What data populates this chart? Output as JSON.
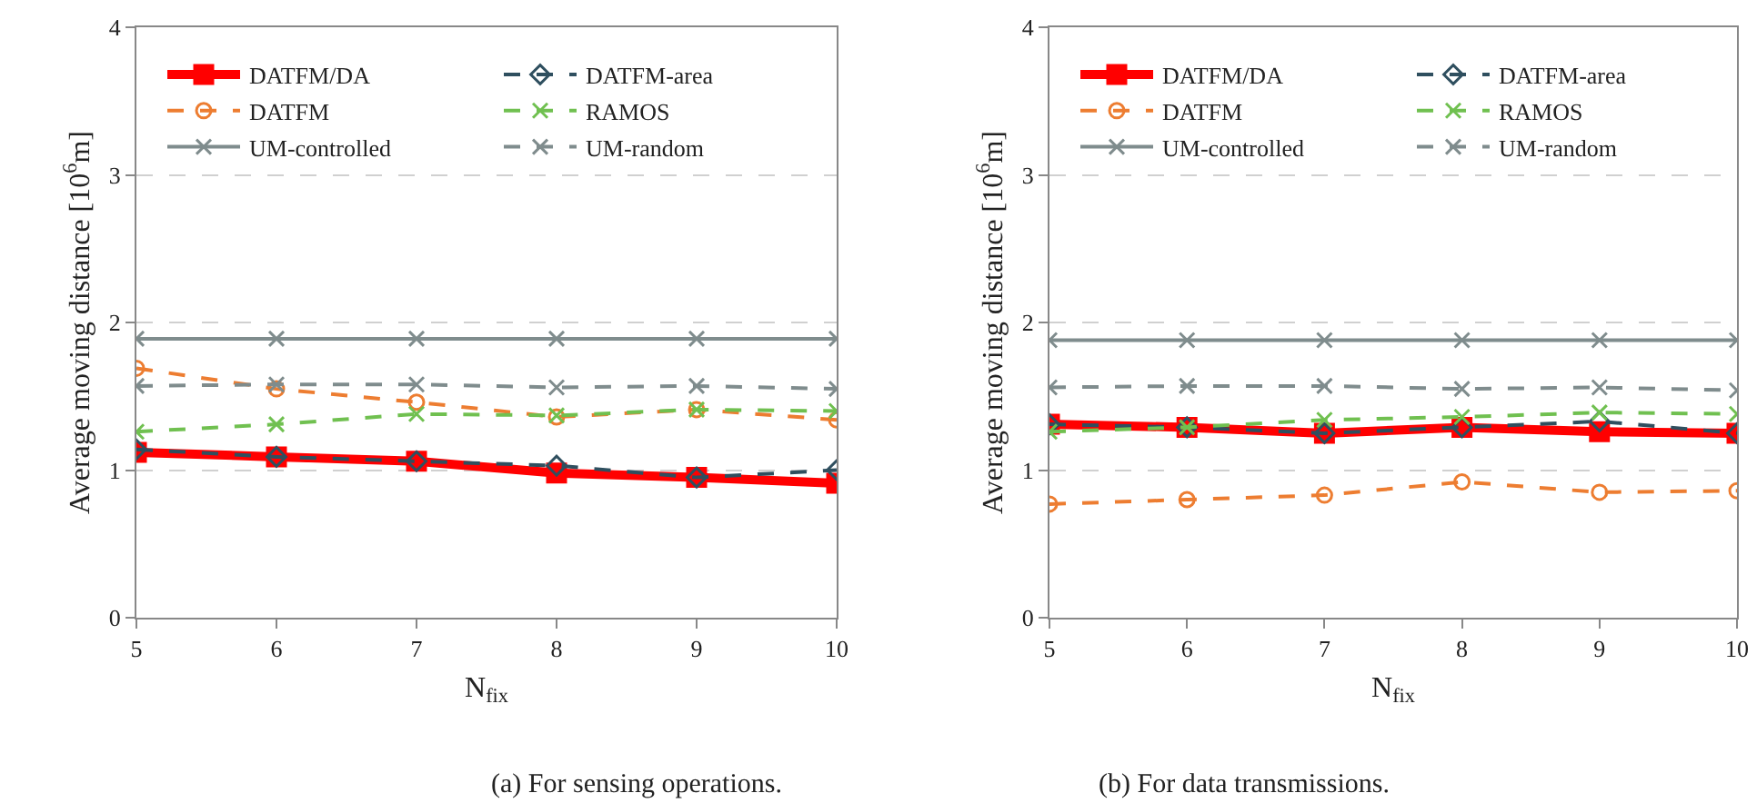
{
  "chart_data": [
    {
      "type": "line",
      "title": "(a) For sensing operations.",
      "xlabel": "N$_{fix}$",
      "ylabel": "Average moving distance [10$^{6}$m]",
      "x": [
        5,
        6,
        7,
        8,
        9,
        10
      ],
      "xlim": [
        5,
        10
      ],
      "xticks": [
        5,
        6,
        7,
        8,
        9,
        10
      ],
      "ylim": [
        0,
        4
      ],
      "yticks": [
        0,
        1,
        2,
        3,
        4
      ],
      "grid": "y",
      "legend": "top",
      "series": [
        {
          "name": "DATFM/DA",
          "color": "#ff0000",
          "marker": "square",
          "line_style": "solid",
          "values": [
            1.12,
            1.09,
            1.06,
            0.98,
            0.95,
            0.91
          ]
        },
        {
          "name": "DATFM-area",
          "color": "#2f4f5f",
          "marker": "diamond",
          "line_style": "dashed",
          "values": [
            1.14,
            1.09,
            1.06,
            1.03,
            0.95,
            1.0
          ]
        },
        {
          "name": "DATFM",
          "color": "#ed7d31",
          "marker": "circle",
          "line_style": "dashed",
          "values": [
            1.69,
            1.55,
            1.46,
            1.36,
            1.41,
            1.34
          ]
        },
        {
          "name": "RAMOS",
          "color": "#70c050",
          "marker": "cross",
          "line_style": "dashed",
          "values": [
            1.26,
            1.31,
            1.38,
            1.37,
            1.41,
            1.4
          ]
        },
        {
          "name": "UM-controlled",
          "color": "#7f8c8d",
          "marker": "cross",
          "line_style": "solid",
          "values": [
            1.89,
            1.89,
            1.89,
            1.89,
            1.89,
            1.89
          ]
        },
        {
          "name": "UM-random",
          "color": "#7f8c8d",
          "marker": "cross",
          "line_style": "dashed",
          "values": [
            1.57,
            1.58,
            1.58,
            1.56,
            1.57,
            1.55
          ]
        }
      ]
    },
    {
      "type": "line",
      "title": "(b) For data transmissions.",
      "xlabel": "N$_{fix}$",
      "ylabel": "Average moving distance [10$^{6}$m]",
      "x": [
        5,
        6,
        7,
        8,
        9,
        10
      ],
      "xlim": [
        5,
        10
      ],
      "xticks": [
        5,
        6,
        7,
        8,
        9,
        10
      ],
      "ylim": [
        0,
        4
      ],
      "yticks": [
        0,
        1,
        2,
        3,
        4
      ],
      "grid": "y",
      "legend": "top",
      "series": [
        {
          "name": "DATFM/DA",
          "color": "#ff0000",
          "marker": "square",
          "line_style": "solid",
          "values": [
            1.31,
            1.29,
            1.25,
            1.29,
            1.26,
            1.25
          ]
        },
        {
          "name": "DATFM-area",
          "color": "#2f4f5f",
          "marker": "diamond",
          "line_style": "dashed",
          "values": [
            1.31,
            1.29,
            1.25,
            1.29,
            1.33,
            1.25
          ]
        },
        {
          "name": "DATFM",
          "color": "#ed7d31",
          "marker": "circle",
          "line_style": "dashed",
          "values": [
            0.77,
            0.8,
            0.83,
            0.92,
            0.85,
            0.86
          ]
        },
        {
          "name": "RAMOS",
          "color": "#70c050",
          "marker": "cross",
          "line_style": "dashed",
          "values": [
            1.26,
            1.29,
            1.34,
            1.36,
            1.39,
            1.38
          ]
        },
        {
          "name": "UM-controlled",
          "color": "#7f8c8d",
          "marker": "cross",
          "line_style": "solid",
          "values": [
            1.88,
            1.88,
            1.88,
            1.88,
            1.88,
            1.88
          ]
        },
        {
          "name": "UM-random",
          "color": "#7f8c8d",
          "marker": "cross",
          "line_style": "dashed",
          "values": [
            1.56,
            1.57,
            1.57,
            1.55,
            1.56,
            1.54
          ]
        }
      ]
    }
  ]
}
